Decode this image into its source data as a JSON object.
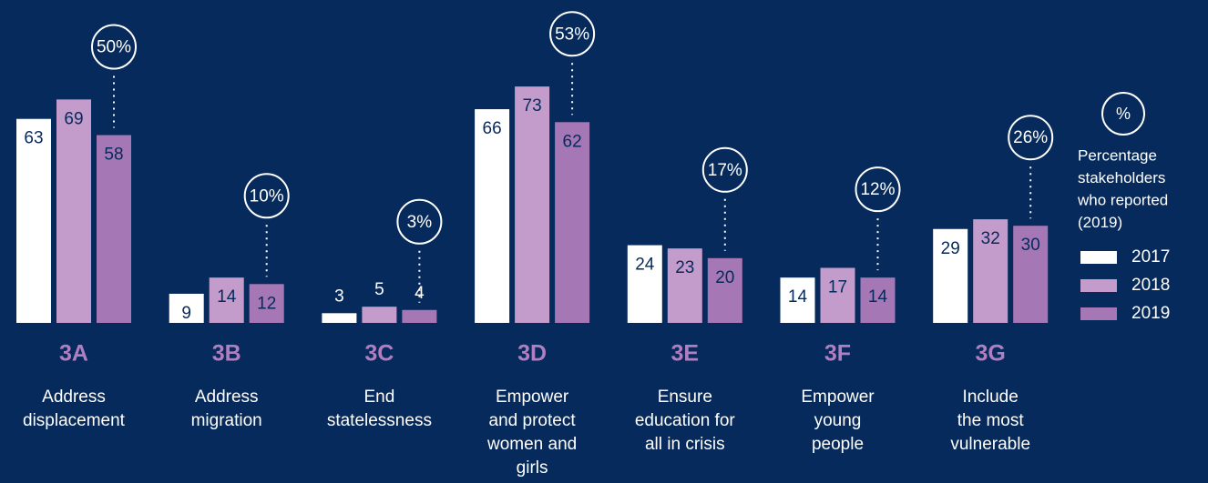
{
  "chart_data": {
    "type": "bar",
    "categories": [
      "3A",
      "3B",
      "3C",
      "3D",
      "3E",
      "3F",
      "3G"
    ],
    "descriptions": [
      [
        "Address",
        "displacement"
      ],
      [
        "Address",
        "migration"
      ],
      [
        "End",
        "statelessness"
      ],
      [
        "Empower",
        "and protect",
        "women and",
        "girls"
      ],
      [
        "Ensure",
        "education for",
        "all in crisis"
      ],
      [
        "Empower",
        "young",
        "people"
      ],
      [
        "Include",
        "the most",
        "vulnerable"
      ]
    ],
    "series": [
      {
        "name": "2017",
        "color": "#ffffff",
        "values": [
          63,
          9,
          3,
          66,
          24,
          14,
          29
        ]
      },
      {
        "name": "2018",
        "color": "#c39ccb",
        "values": [
          69,
          14,
          5,
          73,
          23,
          17,
          32
        ]
      },
      {
        "name": "2019",
        "color": "#a577b4",
        "values": [
          58,
          12,
          4,
          62,
          20,
          14,
          30
        ]
      }
    ],
    "reported_percent": [
      50,
      10,
      3,
      53,
      17,
      12,
      26
    ],
    "reported_percent_labels": [
      "50%",
      "10%",
      "3%",
      "53%",
      "17%",
      "12%",
      "26%"
    ],
    "legend_symbol": "%",
    "legend_note": [
      "Percentage",
      "stakeholders",
      "who reported",
      "(2019)"
    ]
  }
}
